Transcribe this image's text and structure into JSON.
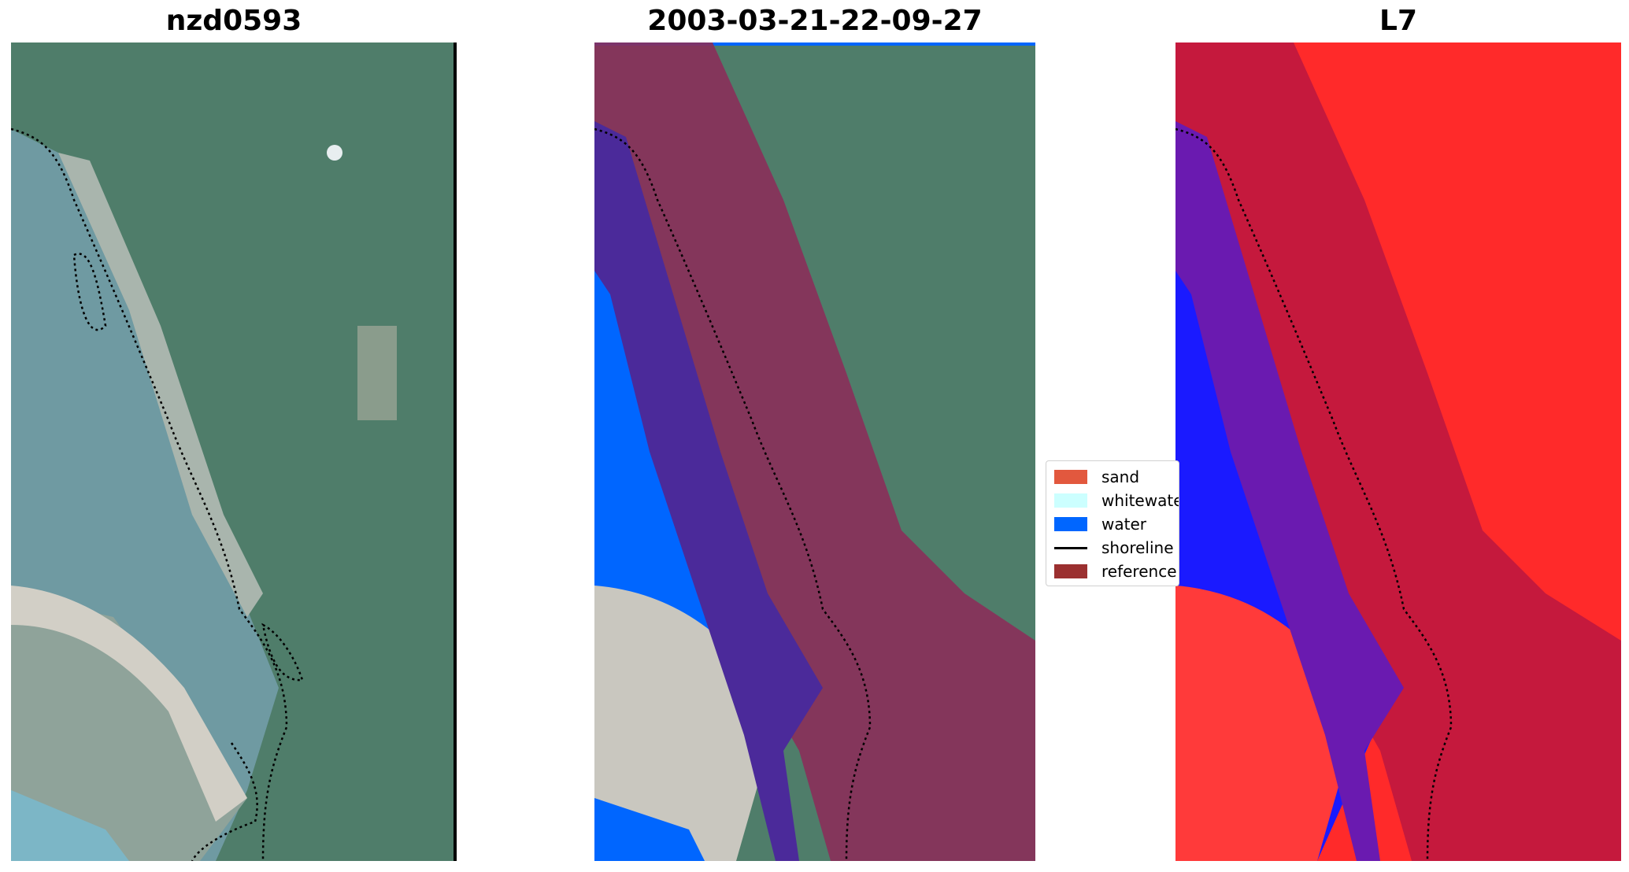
{
  "panels": [
    {
      "title": "nzd0593",
      "kind": "rgb"
    },
    {
      "title": "2003-03-21-22-09-27",
      "kind": "classified"
    },
    {
      "title": "L7",
      "kind": "index"
    }
  ],
  "legend": {
    "items": [
      {
        "label": "sand",
        "type": "patch",
        "color": "#e2583e"
      },
      {
        "label": "whitewater",
        "type": "patch",
        "color": "#ccffff"
      },
      {
        "label": "water",
        "type": "patch",
        "color": "#0066ff"
      },
      {
        "label": "shoreline",
        "type": "line",
        "color": "#000000"
      },
      {
        "label": "reference",
        "type": "patch",
        "color": "#9b3030"
      }
    ]
  },
  "colors": {
    "land": "#4f7d6a",
    "estuary": "#6f9aa2",
    "sand_spit": "#c9c7bf",
    "water_class": "#0066ff",
    "buffer": "#8a2f5a",
    "index_red": "#ff2a2a",
    "index_blue": "#1a1aff"
  }
}
